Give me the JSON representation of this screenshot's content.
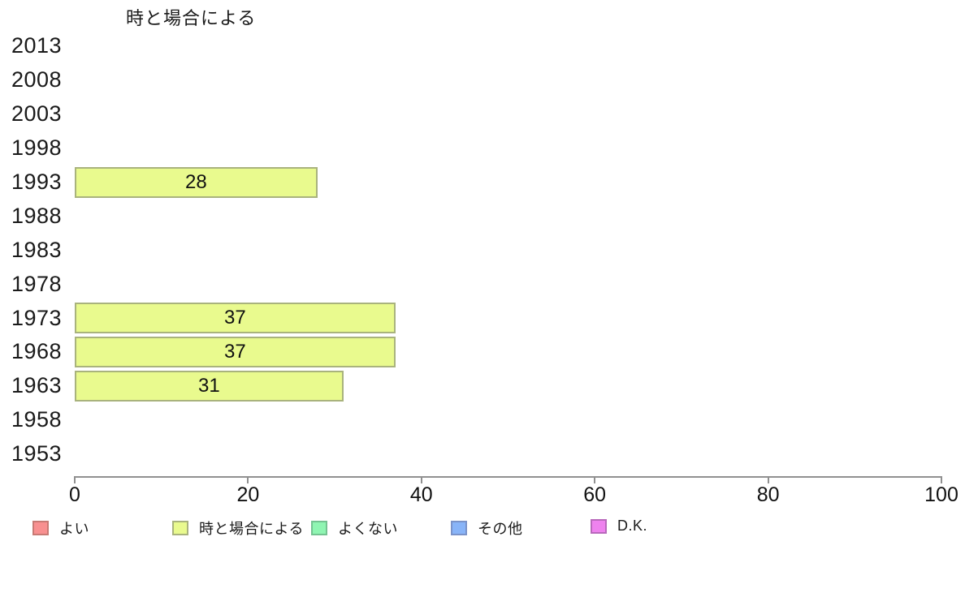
{
  "chart_data": {
    "type": "bar",
    "orientation": "horizontal",
    "title": "時と場合による",
    "series_name": "時と場合による",
    "categories": [
      "2013",
      "2008",
      "2003",
      "1998",
      "1993",
      "1988",
      "1983",
      "1978",
      "1973",
      "1968",
      "1963",
      "1958",
      "1953"
    ],
    "values": [
      null,
      null,
      null,
      null,
      28,
      null,
      null,
      null,
      37,
      37,
      31,
      null,
      null
    ],
    "xlabel": "",
    "ylabel": "",
    "xlim": [
      0,
      100
    ],
    "xticks": [
      0,
      20,
      40,
      60,
      80,
      100
    ],
    "grid": false,
    "background_color": "#ffffff",
    "bar_color": "#e9fa8e",
    "bar_border_color": "#a9b37d",
    "axis_color": "#909090",
    "legend_position": "bottom",
    "legend": [
      {
        "label": "よい",
        "color": "#f89090",
        "border": "#c87a74"
      },
      {
        "label": "時と場合による",
        "color": "#e9fa8e",
        "border": "#a9b37d"
      },
      {
        "label": "よくない",
        "color": "#8ff5b2",
        "border": "#74c391"
      },
      {
        "label": "その他",
        "color": "#88b4f8",
        "border": "#7a93c9"
      },
      {
        "label": "D.K.",
        "color": "#ee82ee",
        "border": "#b868bb"
      }
    ]
  }
}
